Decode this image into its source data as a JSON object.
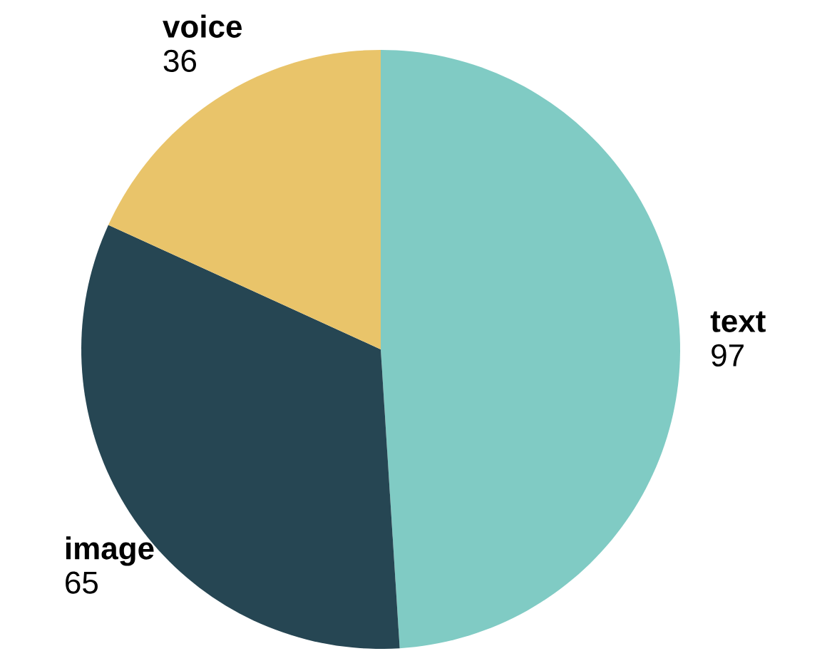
{
  "chart_data": {
    "type": "pie",
    "categories": [
      "text",
      "image",
      "voice"
    ],
    "values": [
      97,
      65,
      36
    ],
    "colors": [
      "#80cbc4",
      "#264653",
      "#e9c46a"
    ],
    "data_labels": true
  }
}
